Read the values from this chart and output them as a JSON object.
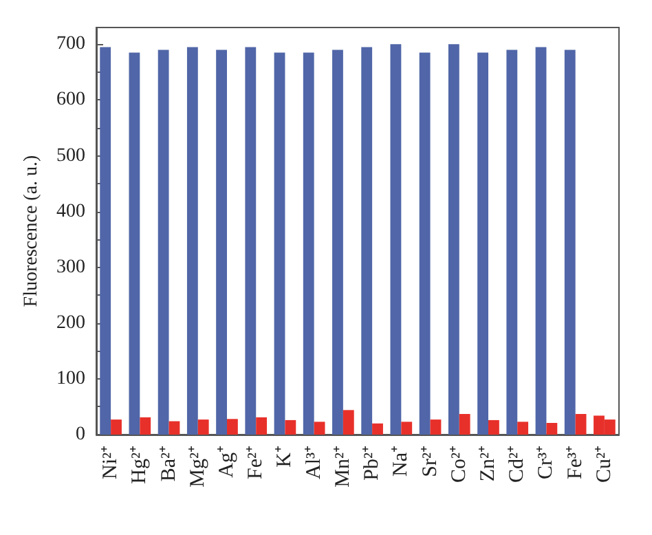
{
  "chart_data": {
    "type": "bar",
    "ylabel": "Fluorescence (a. u.)",
    "categories": [
      "Ni²⁺",
      "Hg²⁺",
      "Ba²⁺",
      "Mg²⁺",
      "Ag⁺",
      "Fe²⁺",
      "K⁺",
      "Al³⁺",
      "Mn²⁺",
      "Pb²⁺",
      "Na⁺",
      "Sr²⁺",
      "Co²⁺",
      "Zn²⁺",
      "Cd²⁺",
      "Cr³⁺",
      "Fe³⁺",
      "Cu²⁺"
    ],
    "series": [
      {
        "color": "#5066a8",
        "colors": [
          "#5066a8",
          "#5066a8",
          "#5066a8",
          "#5066a8",
          "#5066a8",
          "#5066a8",
          "#5066a8",
          "#5066a8",
          "#5066a8",
          "#5066a8",
          "#5066a8",
          "#5066a8",
          "#5066a8",
          "#5066a8",
          "#5066a8",
          "#5066a8",
          "#5066a8",
          "#e8302a"
        ],
        "values": [
          695,
          685,
          690,
          695,
          690,
          695,
          685,
          685,
          690,
          695,
          700,
          685,
          700,
          685,
          690,
          695,
          690,
          34
        ]
      },
      {
        "color": "#e8302a",
        "values": [
          27,
          31,
          24,
          27,
          28,
          31,
          26,
          23,
          44,
          20,
          23,
          27,
          37,
          26,
          23,
          21,
          37,
          27
        ]
      }
    ],
    "ylim": [
      0,
      730
    ],
    "yticks": [
      0,
      100,
      200,
      300,
      400,
      500,
      600,
      700
    ],
    "grid": false
  }
}
